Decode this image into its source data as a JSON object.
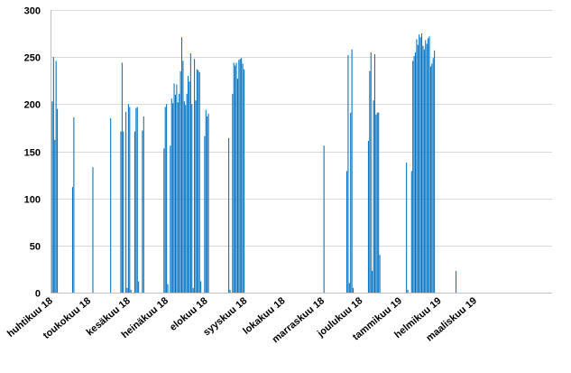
{
  "chart_data": {
    "type": "bar",
    "title": "",
    "xlabel": "",
    "ylabel": "",
    "ylim": [
      0,
      300
    ],
    "yticks": [
      0,
      50,
      100,
      150,
      200,
      250,
      300
    ],
    "grid": "horizontal",
    "legend": "none",
    "bar_color": "#0070c0",
    "x_range": [
      "2018-04-01",
      "2019-04-30"
    ],
    "categories": [
      "huhtikuu 18",
      "toukokuu 18",
      "kesäkuu 18",
      "heinäkuu 18",
      "elokuu 18",
      "syyskuu 18",
      "lokakuu 18",
      "marraskuu 18",
      "joulukuu 18",
      "tammikuu 19",
      "helmikuu 19",
      "maaliskuu 19"
    ],
    "category_dates": [
      "2018-04-01",
      "2018-05-01",
      "2018-06-01",
      "2018-07-01",
      "2018-08-01",
      "2018-09-01",
      "2018-10-01",
      "2018-11-01",
      "2018-12-01",
      "2019-01-01",
      "2019-02-01",
      "2019-03-01"
    ],
    "points": [
      [
        "2018-04-01",
        198
      ],
      [
        "2018-04-02",
        203
      ],
      [
        "2018-04-03",
        250
      ],
      [
        "2018-04-04",
        162
      ],
      [
        "2018-04-05",
        246
      ],
      [
        "2018-04-06",
        195
      ],
      [
        "2018-04-18",
        112
      ],
      [
        "2018-04-19",
        186
      ],
      [
        "2018-05-04",
        133
      ],
      [
        "2018-05-18",
        185
      ],
      [
        "2018-05-26",
        171
      ],
      [
        "2018-05-27",
        244
      ],
      [
        "2018-05-28",
        171
      ],
      [
        "2018-05-30",
        192
      ],
      [
        "2018-05-31",
        5
      ],
      [
        "2018-06-01",
        200
      ],
      [
        "2018-06-02",
        197
      ],
      [
        "2018-06-03",
        3
      ],
      [
        "2018-06-06",
        171
      ],
      [
        "2018-06-07",
        196
      ],
      [
        "2018-06-08",
        197
      ],
      [
        "2018-06-09",
        12
      ],
      [
        "2018-06-12",
        172
      ],
      [
        "2018-06-13",
        187
      ],
      [
        "2018-06-29",
        153
      ],
      [
        "2018-06-30",
        197
      ],
      [
        "2018-07-01",
        200
      ],
      [
        "2018-07-02",
        9
      ],
      [
        "2018-07-04",
        156
      ],
      [
        "2018-07-05",
        206
      ],
      [
        "2018-07-06",
        201
      ],
      [
        "2018-07-07",
        222
      ],
      [
        "2018-07-08",
        210
      ],
      [
        "2018-07-09",
        221
      ],
      [
        "2018-07-10",
        202
      ],
      [
        "2018-07-11",
        211
      ],
      [
        "2018-07-12",
        235
      ],
      [
        "2018-07-13",
        271
      ],
      [
        "2018-07-14",
        246
      ],
      [
        "2018-07-15",
        203
      ],
      [
        "2018-07-16",
        199
      ],
      [
        "2018-07-17",
        211
      ],
      [
        "2018-07-18",
        230
      ],
      [
        "2018-07-19",
        224
      ],
      [
        "2018-07-20",
        254
      ],
      [
        "2018-07-21",
        200
      ],
      [
        "2018-07-22",
        5
      ],
      [
        "2018-07-23",
        248
      ],
      [
        "2018-07-24",
        204
      ],
      [
        "2018-07-25",
        237
      ],
      [
        "2018-07-26",
        236
      ],
      [
        "2018-07-27",
        234
      ],
      [
        "2018-07-28",
        12
      ],
      [
        "2018-07-31",
        166
      ],
      [
        "2018-08-01",
        194
      ],
      [
        "2018-08-02",
        187
      ],
      [
        "2018-08-03",
        190
      ],
      [
        "2018-08-19",
        164
      ],
      [
        "2018-08-20",
        3
      ],
      [
        "2018-08-22",
        211
      ],
      [
        "2018-08-23",
        244
      ],
      [
        "2018-08-24",
        241
      ],
      [
        "2018-08-25",
        244
      ],
      [
        "2018-08-26",
        227
      ],
      [
        "2018-08-27",
        247
      ],
      [
        "2018-08-28",
        248
      ],
      [
        "2018-08-29",
        249
      ],
      [
        "2018-08-30",
        243
      ],
      [
        "2018-08-31",
        237
      ],
      [
        "2018-11-02",
        156
      ],
      [
        "2018-11-20",
        129
      ],
      [
        "2018-11-21",
        252
      ],
      [
        "2018-11-22",
        10
      ],
      [
        "2018-11-23",
        191
      ],
      [
        "2018-11-24",
        258
      ],
      [
        "2018-11-25",
        5
      ],
      [
        "2018-12-07",
        161
      ],
      [
        "2018-12-08",
        235
      ],
      [
        "2018-12-09",
        255
      ],
      [
        "2018-12-10",
        23
      ],
      [
        "2018-12-11",
        204
      ],
      [
        "2018-12-12",
        253
      ],
      [
        "2018-12-13",
        189
      ],
      [
        "2018-12-14",
        191
      ],
      [
        "2018-12-15",
        191
      ],
      [
        "2018-12-16",
        40
      ],
      [
        "2019-01-06",
        138
      ],
      [
        "2019-01-07",
        3
      ],
      [
        "2019-01-10",
        129
      ],
      [
        "2019-01-11",
        246
      ],
      [
        "2019-01-12",
        251
      ],
      [
        "2019-01-13",
        255
      ],
      [
        "2019-01-14",
        269
      ],
      [
        "2019-01-15",
        263
      ],
      [
        "2019-01-16",
        274
      ],
      [
        "2019-01-17",
        271
      ],
      [
        "2019-01-18",
        275
      ],
      [
        "2019-01-19",
        262
      ],
      [
        "2019-01-20",
        258
      ],
      [
        "2019-01-21",
        268
      ],
      [
        "2019-01-22",
        264
      ],
      [
        "2019-01-23",
        270
      ],
      [
        "2019-01-24",
        272
      ],
      [
        "2019-01-25",
        240
      ],
      [
        "2019-01-26",
        243
      ],
      [
        "2019-01-27",
        249
      ],
      [
        "2019-01-28",
        257
      ],
      [
        "2019-02-14",
        23
      ]
    ]
  }
}
